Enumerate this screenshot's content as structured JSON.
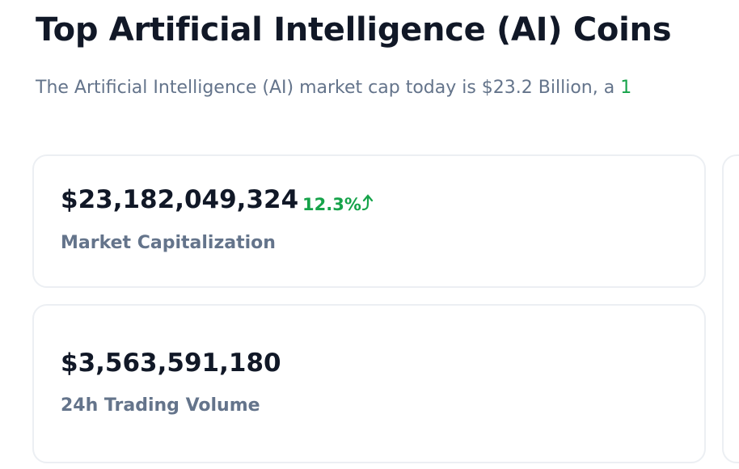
{
  "header": {
    "title": "Top Artificial Intelligence (AI) Coins",
    "subtitle": "The Artificial Intelligence (AI) market cap today is $23.2 Billion, a",
    "subtitle_change": "1"
  },
  "cards": [
    {
      "value": "$23,182,049,324",
      "change": "12.3%",
      "label": "Market Capitalization"
    },
    {
      "value": "$3,563,591,180",
      "label": "24h Trading Volume"
    }
  ]
}
